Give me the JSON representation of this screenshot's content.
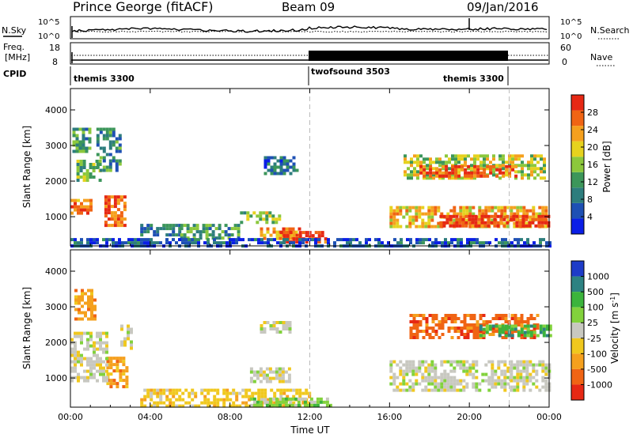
{
  "header": {
    "title": "Prince George (fitACF)",
    "beam": "Beam 09",
    "date": "09/Jan/2016"
  },
  "noise_panel": {
    "left_label": "N.Sky",
    "right_label": "N.Search",
    "left_ticks": [
      "10^5",
      "10^0"
    ],
    "right_ticks": [
      "10^5",
      "10^0"
    ]
  },
  "freq_panel": {
    "left_label_line1": "Freq.",
    "left_label_line2": "[MHz]",
    "right_label": "Nave",
    "left_ticks": [
      "18",
      "8"
    ],
    "right_ticks": [
      "60",
      "0"
    ]
  },
  "cpid": {
    "label": "CPID",
    "segments": [
      {
        "name": "themis 3300",
        "start_hour": 0,
        "end_hour": 12
      },
      {
        "name": "twofsound 3503",
        "start_hour": 12,
        "end_hour": 22
      },
      {
        "name": "themis 3300",
        "start_hour": 22,
        "end_hour": 24
      }
    ]
  },
  "colors": {
    "power_scale": [
      "#0a1ee6",
      "#1e50b4",
      "#2d7d7d",
      "#3c965a",
      "#8cc83c",
      "#e6d21e",
      "#f5a01e",
      "#f06414",
      "#e62814"
    ],
    "velocity_scale": [
      "#1e3cc8",
      "#2d8282",
      "#3cb43c",
      "#82d23c",
      "#c8c8c0",
      "#f0c81e",
      "#f5a01e",
      "#f06414",
      "#e62814"
    ]
  },
  "chart_data": [
    {
      "type": "heatmap",
      "title": "",
      "ylabel": "Slant Range [km]",
      "xlabel": "",
      "ylim": [
        180,
        4600
      ],
      "y_ticks": [
        "1000",
        "2000",
        "3000",
        "4000"
      ],
      "x_ticks": [
        "00:00",
        "04:00",
        "08:00",
        "12:00",
        "16:00",
        "20:00",
        "00:00"
      ],
      "colorbar": {
        "label": "Power [dB]",
        "ticks": [
          "4",
          "8",
          "12",
          "16",
          "20",
          "24",
          "28"
        ],
        "range": [
          0,
          32
        ]
      },
      "vertical_markers_hours": [
        12,
        22
      ],
      "regions": [
        {
          "t0": 0.1,
          "t1": 0.9,
          "r0": 2800,
          "r1": 3500,
          "value": 12
        },
        {
          "t0": 0.3,
          "t1": 1.5,
          "r0": 2000,
          "r1": 2600,
          "value": 14
        },
        {
          "t0": 0.0,
          "t1": 1.0,
          "r0": 1100,
          "r1": 1500,
          "value": 26
        },
        {
          "t0": 1.3,
          "t1": 2.5,
          "r0": 2300,
          "r1": 3500,
          "value": 10
        },
        {
          "t0": 1.7,
          "t1": 2.7,
          "r0": 800,
          "r1": 1600,
          "value": 27
        },
        {
          "t0": 3.5,
          "t1": 5.5,
          "r0": 500,
          "r1": 800,
          "value": 8
        },
        {
          "t0": 5.5,
          "t1": 8.5,
          "r0": 400,
          "r1": 800,
          "value": 12
        },
        {
          "t0": 8.5,
          "t1": 10.5,
          "r0": 850,
          "r1": 1150,
          "value": 16
        },
        {
          "t0": 9.5,
          "t1": 11.5,
          "r0": 350,
          "r1": 700,
          "value": 24
        },
        {
          "t0": 10.5,
          "t1": 12.8,
          "r0": 300,
          "r1": 600,
          "value": 30
        },
        {
          "t0": 9.7,
          "t1": 11.3,
          "r0": 2250,
          "r1": 2700,
          "value": 8
        },
        {
          "t0": 16.7,
          "t1": 23.7,
          "r0": 2050,
          "r1": 2750,
          "value": 18
        },
        {
          "t0": 17.5,
          "t1": 22.3,
          "r0": 2150,
          "r1": 2450,
          "value": 28
        },
        {
          "t0": 16.0,
          "t1": 23.9,
          "r0": 750,
          "r1": 1300,
          "value": 22
        },
        {
          "t0": 18.5,
          "t1": 23.9,
          "r0": 750,
          "r1": 1050,
          "value": 30
        },
        {
          "t0": 0.0,
          "t1": 24.0,
          "r0": 180,
          "r1": 400,
          "value": 6
        }
      ]
    },
    {
      "type": "heatmap",
      "title": "",
      "ylabel": "Slant Range [km]",
      "xlabel": "Time UT",
      "ylim": [
        180,
        4600
      ],
      "y_ticks": [
        "1000",
        "2000",
        "3000",
        "4000"
      ],
      "x_ticks": [
        "00:00",
        "04:00",
        "08:00",
        "12:00",
        "16:00",
        "20:00",
        "00:00"
      ],
      "colorbar": {
        "label": "Velocity [m s^-1]",
        "ticks": [
          "1000",
          "500",
          "100",
          "25",
          "-25",
          "-100",
          "-500",
          "-1000"
        ],
        "range": [
          -1000,
          1000
        ]
      },
      "vertical_markers_hours": [
        12,
        22
      ],
      "regions": [
        {
          "t0": 0.2,
          "t1": 1.3,
          "r0": 2700,
          "r1": 3500,
          "value": -300
        },
        {
          "t0": 1.8,
          "t1": 2.8,
          "r0": 800,
          "r1": 1600,
          "value": -200
        },
        {
          "t0": 0.0,
          "t1": 1.8,
          "r0": 900,
          "r1": 2300,
          "value": 0
        },
        {
          "t0": 2.5,
          "t1": 3.0,
          "r0": 1800,
          "r1": 2500,
          "value": 0
        },
        {
          "t0": 3.5,
          "t1": 12.0,
          "r0": 180,
          "r1": 700,
          "value": -60
        },
        {
          "t0": 9.0,
          "t1": 13.0,
          "r0": 200,
          "r1": 450,
          "value": 80
        },
        {
          "t0": 9.5,
          "t1": 11.0,
          "r0": 2300,
          "r1": 2600,
          "value": 0
        },
        {
          "t0": 9.0,
          "t1": 11.0,
          "r0": 900,
          "r1": 1300,
          "value": 0
        },
        {
          "t0": 17.0,
          "t1": 23.5,
          "r0": 2100,
          "r1": 2800,
          "value": -600
        },
        {
          "t0": 16.0,
          "t1": 24.0,
          "r0": 700,
          "r1": 1500,
          "value": 0
        },
        {
          "t0": 20.5,
          "t1": 24.0,
          "r0": 2200,
          "r1": 2500,
          "value": 300
        }
      ]
    }
  ]
}
